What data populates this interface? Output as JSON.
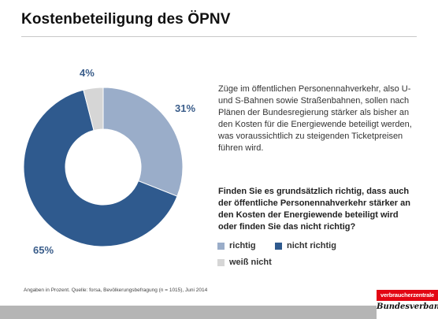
{
  "title": "Kostenbeteiligung des ÖPNV",
  "intro_text": "Züge im öffentlichen Personennahverkehr, also U- und S-Bahnen sowie Straßenbahnen, sollen nach Plänen der Bundesregierung stärker als bisher an den Kosten für die Energiewende beteiligt werden, was voraussichtlich zu steigenden Ticketpreisen führen wird.",
  "question_text": "Finden Sie es grundsätzlich richtig, dass auch der öffentliche Personennahverkehr stärker an den Kosten der Energiewende beteiligt wird oder finden Sie das nicht richtig?",
  "source_text": "Angaben in Prozent. Quelle: forsa, Bevölkerungsbefragung (n = 1015), Juni 2014",
  "logo": {
    "top": "verbraucherzentrale",
    "bottom": "Bundesverband"
  },
  "chart_data": {
    "type": "pie",
    "variant": "donut",
    "categories": [
      "richtig",
      "nicht richtig",
      "weiß nicht"
    ],
    "values": [
      31,
      65,
      4
    ],
    "labels": [
      "31%",
      "65%",
      "4%"
    ],
    "colors": [
      "#9aadc9",
      "#2f5a8e",
      "#d6d6d6"
    ],
    "legend_position": "bottom-right"
  }
}
